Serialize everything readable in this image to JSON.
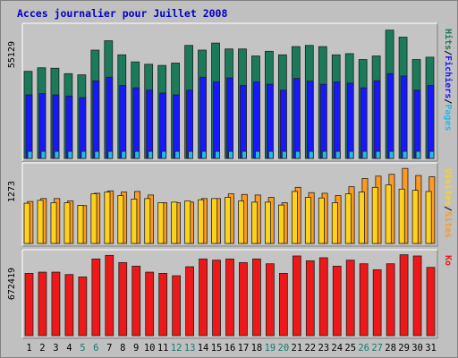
{
  "title": "Acces journalier pour Juillet 2008",
  "colors": {
    "frame_bg": "#c0c0c0",
    "panel_bg": "#c4c4c4",
    "title_text": "#0000c8",
    "hits": "#1a7a5a",
    "files": "#1818ff",
    "pages": "#28b8ea",
    "visits": "#ff9a1e",
    "sites": "#ffd21a",
    "kb": "#ee1818",
    "weekday_text": "#000000",
    "weekend_text": "#187870",
    "max_label_text": "#000000"
  },
  "chart_data": [
    {
      "type": "bar",
      "title": "Acces journalier pour Juillet 2008",
      "ymax_label": "55129",
      "ylim": [
        0,
        55129
      ],
      "categories": [
        "1",
        "2",
        "3",
        "4",
        "5",
        "6",
        "7",
        "8",
        "9",
        "10",
        "11",
        "12",
        "13",
        "14",
        "15",
        "16",
        "17",
        "18",
        "19",
        "20",
        "21",
        "22",
        "23",
        "24",
        "25",
        "26",
        "27",
        "28",
        "29",
        "30",
        "31"
      ],
      "weekend_days": [
        "5",
        "6",
        "12",
        "13",
        "19",
        "20",
        "26",
        "27"
      ],
      "legend": [
        {
          "text": "Hits",
          "color": "#1a7a5a"
        },
        {
          "sep": "/"
        },
        {
          "text": "Fichiers",
          "color": "#1818ff"
        },
        {
          "sep": "/"
        },
        {
          "text": "Pages",
          "color": "#28b8ea"
        }
      ],
      "series": [
        {
          "name": "Hits",
          "values": [
            37000,
            38500,
            38300,
            36000,
            35500,
            46000,
            50000,
            44000,
            41000,
            40000,
            39500,
            40500,
            48000,
            46000,
            49000,
            46500,
            46500,
            43500,
            45500,
            44000,
            47500,
            48000,
            47500,
            44000,
            44500,
            42000,
            43500,
            54500,
            51500,
            42000,
            43000
          ]
        },
        {
          "name": "Fichiers",
          "values": [
            27000,
            27500,
            27000,
            26500,
            25800,
            33000,
            34500,
            31000,
            30000,
            29000,
            27800,
            27000,
            29000,
            34500,
            32500,
            34200,
            31000,
            32500,
            31500,
            29000,
            34000,
            32800,
            31500,
            32500,
            32000,
            30000,
            33000,
            36000,
            35000,
            29000,
            31000
          ]
        },
        {
          "name": "Pages",
          "values": [
            3000,
            3000,
            3000,
            3000,
            3000,
            3000,
            3000,
            3000,
            3000,
            3000,
            3000,
            3000,
            3000,
            3000,
            3000,
            3000,
            3000,
            3000,
            3000,
            3000,
            3000,
            3000,
            3000,
            3000,
            3000,
            3000,
            3000,
            3000,
            3000,
            3000,
            3000
          ]
        }
      ]
    },
    {
      "type": "bar",
      "ymax_label": "1273",
      "ylim": [
        0,
        1273
      ],
      "legend": [
        {
          "text": "Visites",
          "color": "#ffd21a"
        },
        {
          "sep": "/"
        },
        {
          "text": "Sites",
          "color": "#ff9a1e"
        }
      ],
      "series": [
        {
          "name": "Visites",
          "values": [
            680,
            730,
            690,
            690,
            645,
            840,
            870,
            810,
            750,
            760,
            690,
            700,
            720,
            740,
            760,
            780,
            720,
            700,
            700,
            650,
            880,
            780,
            770,
            690,
            840,
            870,
            950,
            990,
            920,
            900,
            880
          ]
        },
        {
          "name": "Sites",
          "values": [
            710,
            760,
            760,
            720,
            640,
            850,
            890,
            870,
            880,
            820,
            690,
            690,
            700,
            760,
            760,
            840,
            830,
            820,
            780,
            690,
            950,
            860,
            850,
            810,
            960,
            1100,
            1140,
            1170,
            1270,
            1150,
            1130
          ]
        }
      ]
    },
    {
      "type": "bar",
      "ymax_label": "672419",
      "ylim": [
        0,
        672419
      ],
      "legend": [
        {
          "text": "Ko",
          "color": "#ee1818"
        }
      ],
      "series": [
        {
          "name": "Ko",
          "values": [
            520000,
            530000,
            530000,
            510000,
            490000,
            640000,
            670000,
            610000,
            580000,
            530000,
            520000,
            500000,
            575000,
            640000,
            630000,
            640000,
            610000,
            640000,
            600000,
            520000,
            665000,
            625000,
            650000,
            580000,
            630000,
            600000,
            550000,
            600000,
            675000,
            665000,
            570000
          ]
        }
      ]
    }
  ]
}
